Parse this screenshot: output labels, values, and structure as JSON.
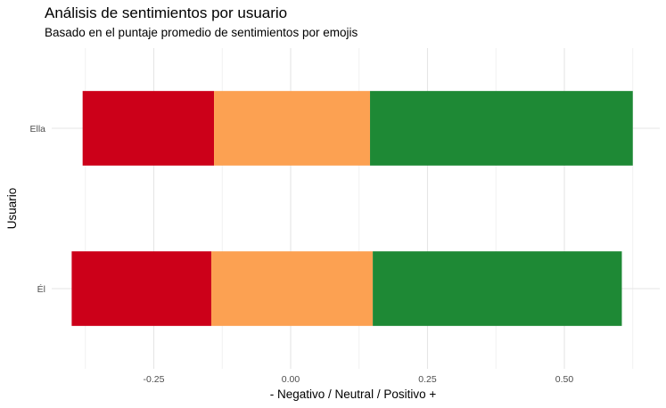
{
  "chart_data": {
    "type": "bar",
    "orientation": "horizontal",
    "stacked": true,
    "title": "Análisis de sentimientos por usuario",
    "subtitle": "Basado en el puntaje promedio de sentimientos por emojis",
    "xlabel": "- Negativo / Neutral / Positivo +",
    "ylabel": "Usuario",
    "categories": [
      "Ella",
      "Él"
    ],
    "xlim": [
      -0.42,
      0.64
    ],
    "xticks": [
      -0.25,
      0.0,
      0.25,
      0.5
    ],
    "xtick_labels": [
      "-0.25",
      "0.00",
      "0.25",
      "0.50"
    ],
    "grid": true,
    "legend": "none",
    "segments": [
      {
        "color": "#cc0019",
        "ranges": [
          [
            -0.38,
            -0.14
          ],
          [
            -0.4,
            -0.145
          ]
        ]
      },
      {
        "color": "#fca152",
        "ranges": [
          [
            -0.14,
            0.145
          ],
          [
            -0.145,
            0.15
          ]
        ]
      },
      {
        "color": "#1e8935",
        "ranges": [
          [
            0.145,
            0.625
          ],
          [
            0.15,
            0.605
          ]
        ]
      }
    ]
  }
}
